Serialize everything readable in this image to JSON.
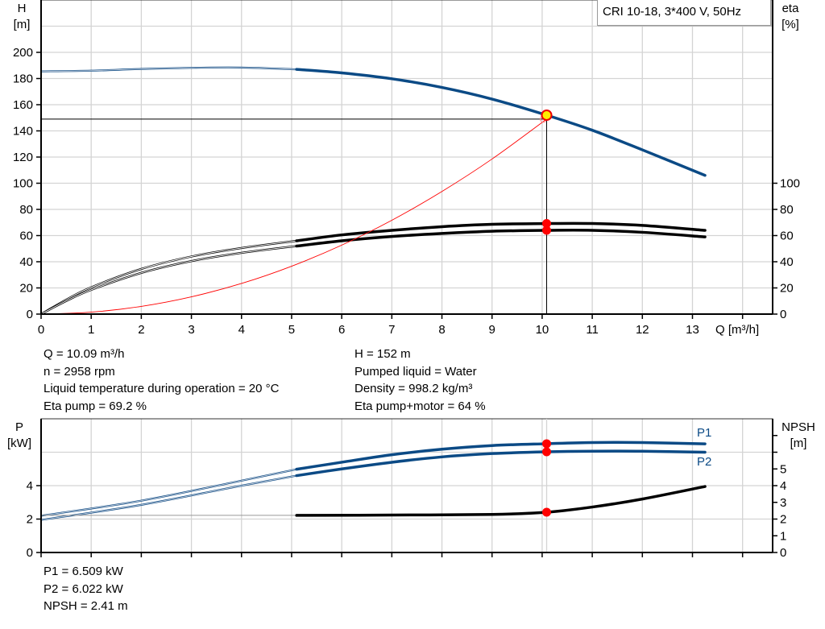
{
  "chart_data": [
    {
      "type": "line",
      "title": "CRI 10-18, 3*400 V, 50Hz",
      "xlabel": "Q [m³/h]",
      "ylabel": "H",
      "ylabel_unit": "[m]",
      "y2label": "eta",
      "y2label_unit": "[%]",
      "xlim": [
        0,
        14.6
      ],
      "ylim": [
        0,
        240
      ],
      "y2lim": [
        0,
        240
      ],
      "grid": true,
      "x_ticks": [
        "0",
        "1",
        "2",
        "3",
        "4",
        "5",
        "6",
        "7",
        "8",
        "9",
        "10",
        "11",
        "12",
        "13"
      ],
      "y_ticks": [
        "0",
        "20",
        "40",
        "60",
        "80",
        "100",
        "120",
        "140",
        "160",
        "180",
        "200"
      ],
      "y2_ticks": [
        "0",
        "20",
        "40",
        "60",
        "80",
        "100"
      ],
      "recommended_range_from_q": 5.1,
      "series": [
        {
          "id": "head",
          "color": "#0b4a85",
          "axis": "left",
          "points": [
            [
              0,
              185.5
            ],
            [
              1,
              186
            ],
            [
              2,
              187.3
            ],
            [
              3,
              188.2
            ],
            [
              4,
              188.4
            ],
            [
              5.1,
              187
            ],
            [
              6,
              184.3
            ],
            [
              7,
              179.8
            ],
            [
              8,
              173.2
            ],
            [
              9,
              164.3
            ],
            [
              10.09,
              152
            ],
            [
              11,
              140.5
            ],
            [
              12,
              125.5
            ],
            [
              13.25,
              106
            ]
          ]
        },
        {
          "id": "eta-pump",
          "color": "#000000",
          "axis": "right",
          "points": [
            [
              0,
              0
            ],
            [
              0.5,
              11
            ],
            [
              1,
              20.5
            ],
            [
              2,
              34.5
            ],
            [
              3,
              44
            ],
            [
              4,
              50.5
            ],
            [
              5.1,
              56
            ],
            [
              6,
              60.5
            ],
            [
              7,
              64
            ],
            [
              8,
              66.8
            ],
            [
              9,
              68.6
            ],
            [
              10.09,
              69.2
            ],
            [
              11,
              69.2
            ],
            [
              12,
              67.8
            ],
            [
              13.25,
              64
            ]
          ]
        },
        {
          "id": "eta-pump-motor",
          "color": "#000000",
          "axis": "right",
          "points": [
            [
              0,
              0
            ],
            [
              0.5,
              10
            ],
            [
              1,
              18.5
            ],
            [
              2,
              31.5
            ],
            [
              3,
              40.5
            ],
            [
              4,
              46.8
            ],
            [
              5.1,
              52
            ],
            [
              6,
              56
            ],
            [
              7,
              59.3
            ],
            [
              8,
              61.6
            ],
            [
              9,
              63.3
            ],
            [
              10.09,
              64
            ],
            [
              11,
              64
            ],
            [
              12,
              62.5
            ],
            [
              13.25,
              59
            ]
          ]
        },
        {
          "id": "system-curve",
          "color": "#ff0000",
          "axis": "left",
          "points": [
            [
              0,
              0
            ],
            [
              1,
              1.5
            ],
            [
              2,
              5.9
            ],
            [
              3,
              13.2
            ],
            [
              4,
              23.4
            ],
            [
              5,
              36.6
            ],
            [
              6,
              52.7
            ],
            [
              7,
              71.7
            ],
            [
              8,
              93.7
            ],
            [
              9,
              118.5
            ],
            [
              10.09,
              149
            ]
          ]
        }
      ],
      "operating_point": {
        "q": 10.09,
        "h": 152,
        "h_required": 149,
        "eta_pump": 69.2,
        "eta_pump_motor": 64
      }
    },
    {
      "type": "line",
      "ylabel": "P",
      "ylabel_unit": "[kW]",
      "y2label": "NPSH",
      "y2label_unit": "[m]",
      "xlim": [
        0,
        14.6
      ],
      "ylim": [
        0,
        8
      ],
      "y2lim": [
        0,
        8
      ],
      "grid": true,
      "y_ticks": [
        "0",
        "2",
        "4"
      ],
      "y2_ticks": [
        "0",
        "1",
        "2",
        "3",
        "4",
        "5"
      ],
      "recommended_range_from_q": 5.1,
      "series": [
        {
          "id": "p1",
          "name": "P1",
          "color": "#0b4a85",
          "axis": "left",
          "points": [
            [
              0,
              2.2
            ],
            [
              2,
              3.1
            ],
            [
              4,
              4.3
            ],
            [
              5.1,
              4.98
            ],
            [
              6,
              5.4
            ],
            [
              7,
              5.85
            ],
            [
              8,
              6.18
            ],
            [
              9,
              6.4
            ],
            [
              10.09,
              6.509
            ],
            [
              11,
              6.58
            ],
            [
              12,
              6.58
            ],
            [
              13.25,
              6.5
            ]
          ]
        },
        {
          "id": "p2",
          "name": "P2",
          "color": "#0b4a85",
          "axis": "left",
          "points": [
            [
              0,
              1.95
            ],
            [
              2,
              2.85
            ],
            [
              4,
              4.0
            ],
            [
              5.1,
              4.6
            ],
            [
              6,
              5.0
            ],
            [
              7,
              5.4
            ],
            [
              8,
              5.72
            ],
            [
              9,
              5.92
            ],
            [
              10.09,
              6.022
            ],
            [
              11,
              6.06
            ],
            [
              12,
              6.06
            ],
            [
              13.25,
              6.0
            ]
          ]
        },
        {
          "id": "npsh",
          "color": "#000000",
          "axis": "right",
          "points": [
            [
              0,
              2.22
            ],
            [
              5.1,
              2.22
            ],
            [
              7,
              2.24
            ],
            [
              9,
              2.28
            ],
            [
              10.09,
              2.41
            ],
            [
              11,
              2.72
            ],
            [
              12,
              3.2
            ],
            [
              13.25,
              3.95
            ]
          ]
        }
      ],
      "operating_point": {
        "q": 10.09,
        "p1": 6.509,
        "p2": 6.022,
        "npsh": 2.41
      }
    }
  ],
  "info_left": [
    "Q = 10.09 m³/h",
    "n = 2958 rpm",
    "Liquid temperature during operation = 20 °C",
    "Eta pump = 69.2 %"
  ],
  "info_right": [
    "H = 152 m",
    "Pumped liquid = Water",
    "Density = 998.2 kg/m³",
    "Eta pump+motor = 64 %"
  ],
  "info_bottom": [
    "P1 = 6.509 kW",
    "P2 = 6.022 kW",
    "NPSH = 2.41 m"
  ]
}
